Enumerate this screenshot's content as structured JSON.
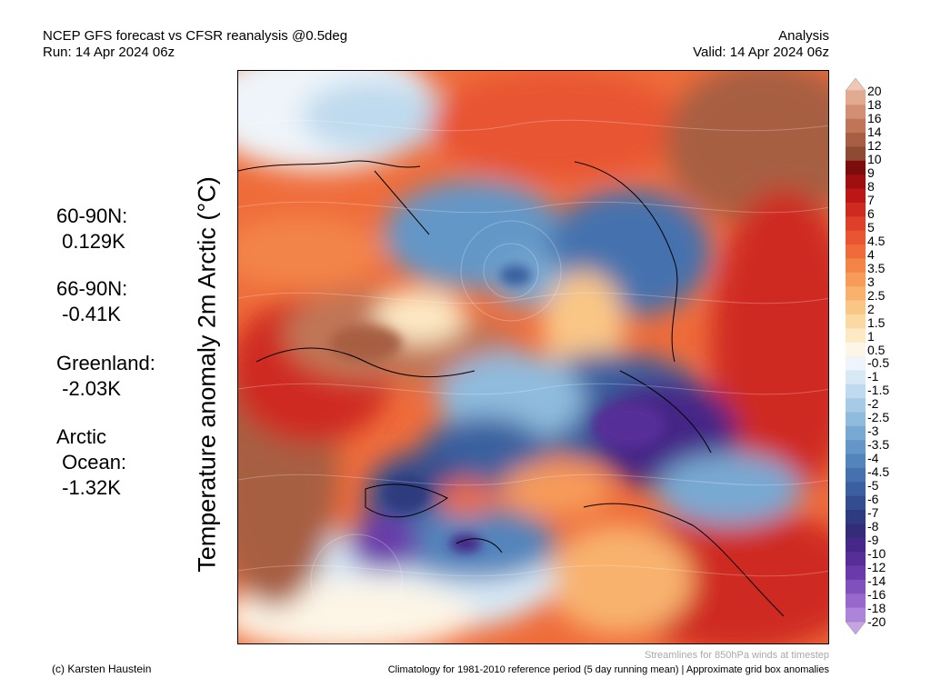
{
  "header": {
    "title": "NCEP GFS forecast vs CFSR reanalysis @0.5deg",
    "run": "Run: 14 Apr 2024 06z",
    "analysis": "Analysis",
    "valid": "Valid: 14 Apr 2024 06z"
  },
  "y_axis_label": "Temperature anomaly 2m Arctic (°C)",
  "stats": [
    "60-90N:\n 0.129K",
    "66-90N:\n -0.41K",
    "Greenland:\n -2.03K",
    "Arctic\n Ocean:\n -1.32K"
  ],
  "colorbar": {
    "labels": [
      "20",
      "18",
      "16",
      "14",
      "12",
      "10",
      "9",
      "8",
      "7",
      "6",
      "5",
      "4.5",
      "4",
      "3.5",
      "3",
      "2.5",
      "2",
      "1.5",
      "1",
      "0.5",
      "-0.5",
      "-1",
      "-1.5",
      "-2",
      "-2.5",
      "-3",
      "-3.5",
      "-4",
      "-4.5",
      "-5",
      "-6",
      "-7",
      "-8",
      "-9",
      "-10",
      "-12",
      "-14",
      "-16",
      "-18",
      "-20"
    ],
    "colors": [
      "#f1c6b4",
      "#e3aa92",
      "#d28f74",
      "#c07656",
      "#a75e43",
      "#8f4a33",
      "#7c0d0d",
      "#a00f0f",
      "#bc1717",
      "#cf2a20",
      "#dd3f28",
      "#e85530",
      "#ef6c3a",
      "#f38448",
      "#f69b5a",
      "#f8b26e",
      "#fac686",
      "#fbd9a2",
      "#fde9c4",
      "#fdf5e6",
      "#eef4f9",
      "#d8e8f4",
      "#bfdaee",
      "#a7cbe6",
      "#8fbbdd",
      "#78a9d2",
      "#6497c7",
      "#5384bb",
      "#4572ae",
      "#3a609f",
      "#334d8e",
      "#2e3b7e",
      "#352c78",
      "#452887",
      "#572e98",
      "#6b3aaa",
      "#8050bd",
      "#9769cc",
      "#ad84da",
      "#c5a4e6"
    ]
  },
  "footer": {
    "credit": "(c) Karsten Haustein",
    "streamlines": "Streamlines for 850hPa winds at timestep",
    "climatology": "Climatology for 1981-2010 reference period (5 day running mean) | Approximate grid box anomalies"
  }
}
